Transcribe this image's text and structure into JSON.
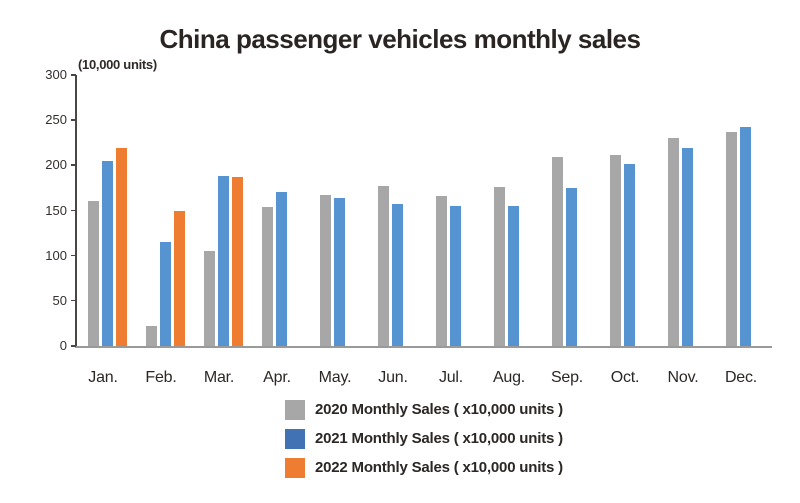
{
  "title": "China passenger vehicles monthly sales",
  "axis_unit_label": "(10,000 units)",
  "chart_data": {
    "type": "bar",
    "categories": [
      "Jan.",
      "Feb.",
      "Mar.",
      "Apr.",
      "May.",
      "Jun.",
      "Jul.",
      "Aug.",
      "Sep.",
      "Oct.",
      "Nov.",
      "Dec."
    ],
    "series": [
      {
        "name": "2020 Monthly Sales ( x10,000 units )",
        "color": "#a7a7a7",
        "values": [
          161,
          22,
          105,
          154,
          167,
          177,
          166,
          176,
          209,
          211,
          230,
          237
        ]
      },
      {
        "name": "2021 Monthly Sales ( x10,000 units )",
        "color": "#5693d1",
        "legend_color": "#4173b4",
        "values": [
          205,
          115,
          188,
          170,
          164,
          157,
          155,
          155,
          175,
          201,
          219,
          242
        ]
      },
      {
        "name": "2022 Monthly Sales ( x10,000 units )",
        "color": "#ee7d31",
        "values": [
          219,
          149,
          187
        ]
      }
    ],
    "ylabel": "(10,000 units)",
    "ylim": [
      0,
      300
    ],
    "yticks": [
      0,
      50,
      100,
      150,
      200,
      250,
      300
    ],
    "grid": false,
    "legend_position": "bottom"
  }
}
